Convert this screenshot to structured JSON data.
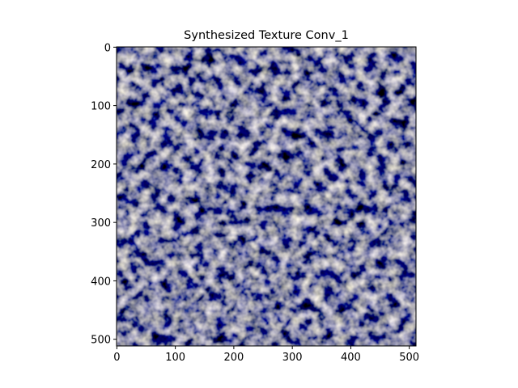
{
  "chart_data": {
    "type": "image",
    "title": "Synthesized Texture Conv_1",
    "xlim": [
      -0.5,
      511.5
    ],
    "ylim": [
      511.5,
      -0.5
    ],
    "xticks": [
      0,
      100,
      200,
      300,
      400,
      500
    ],
    "yticks": [
      0,
      100,
      200,
      300,
      400,
      500
    ]
  }
}
